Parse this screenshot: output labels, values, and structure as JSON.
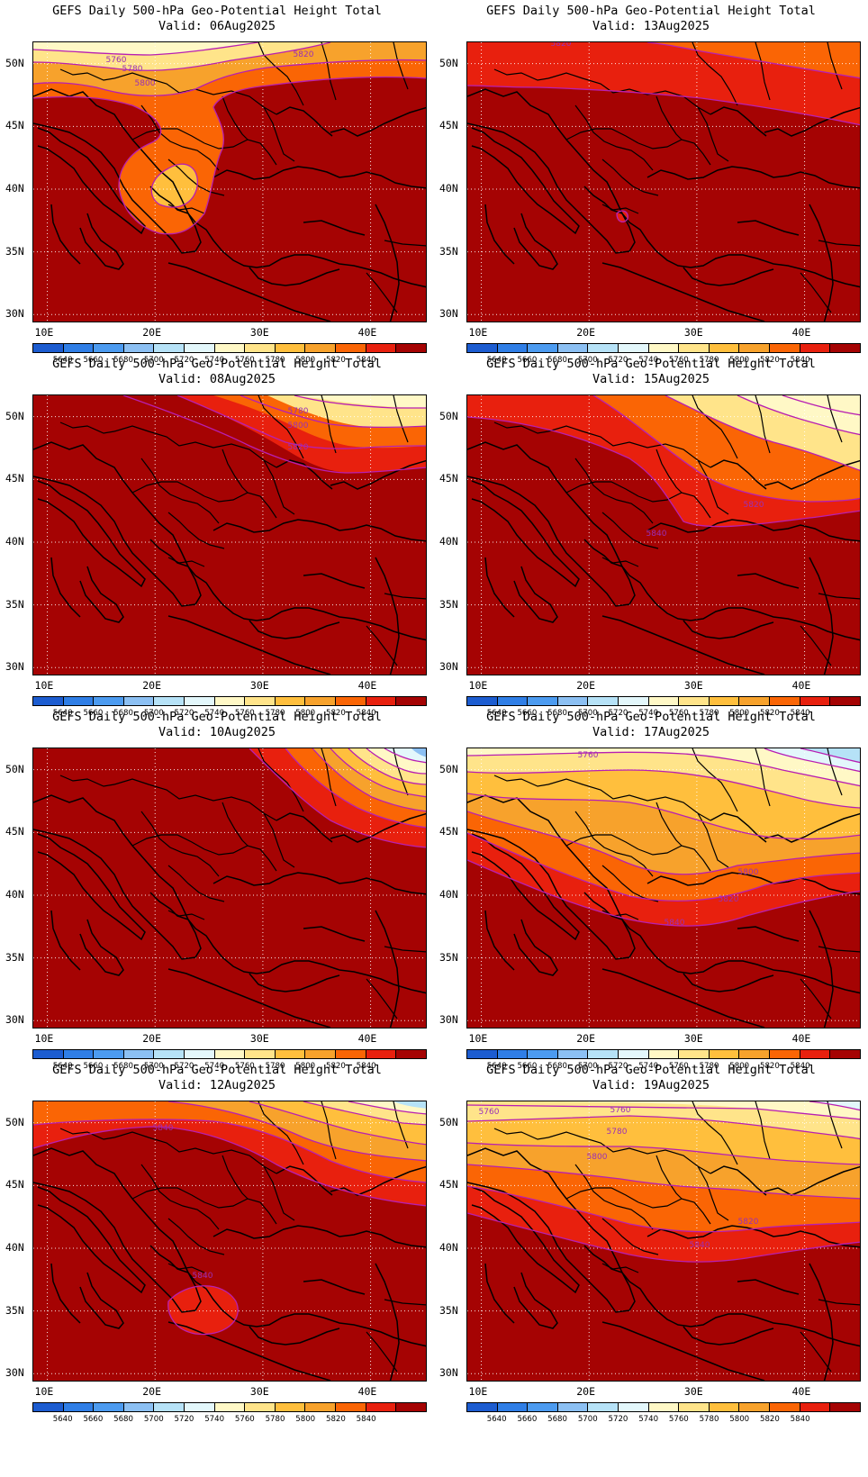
{
  "title": "GEFS Daily 500-hPa Geo-Potential Height Total",
  "lat_labels": [
    "50N",
    "45N",
    "40N",
    "35N",
    "30N"
  ],
  "lon_labels": [
    "10E",
    "20E",
    "30E",
    "40E"
  ],
  "colorbar": {
    "levels": [
      "5640",
      "5660",
      "5680",
      "5700",
      "5720",
      "5740",
      "5760",
      "5780",
      "5800",
      "5820",
      "5840"
    ],
    "colors": [
      "#1c5cd0",
      "#2f7ee6",
      "#4c9bf0",
      "#8cc0f3",
      "#b6e2f7",
      "#e3f7fb",
      "#fff8c6",
      "#ffe48a",
      "#ffbf3d",
      "#f7a22c",
      "#fa6505",
      "#e8200e",
      "#a50303"
    ]
  },
  "contour_color": "#b81fb2",
  "panels": [
    {
      "valid": "Valid: 06Aug2025",
      "contour_labels": [
        "5760",
        "5780",
        "5800",
        "5820"
      ]
    },
    {
      "valid": "Valid: 13Aug2025",
      "contour_labels": [
        "5820"
      ]
    },
    {
      "valid": "Valid: 08Aug2025",
      "contour_labels": [
        "5780",
        "5800",
        "5820"
      ]
    },
    {
      "valid": "Valid: 15Aug2025",
      "contour_labels": [
        "5820",
        "5840"
      ]
    },
    {
      "valid": "Valid: 10Aug2025",
      "contour_labels": []
    },
    {
      "valid": "Valid: 17Aug2025",
      "contour_labels": [
        "5760",
        "5800",
        "5820",
        "5840"
      ]
    },
    {
      "valid": "Valid: 12Aug2025",
      "contour_labels": [
        "5840",
        "5840"
      ]
    },
    {
      "valid": "Valid: 19Aug2025",
      "contour_labels": [
        "5760",
        "5760",
        "5780",
        "5800",
        "5820",
        "5840"
      ]
    }
  ]
}
